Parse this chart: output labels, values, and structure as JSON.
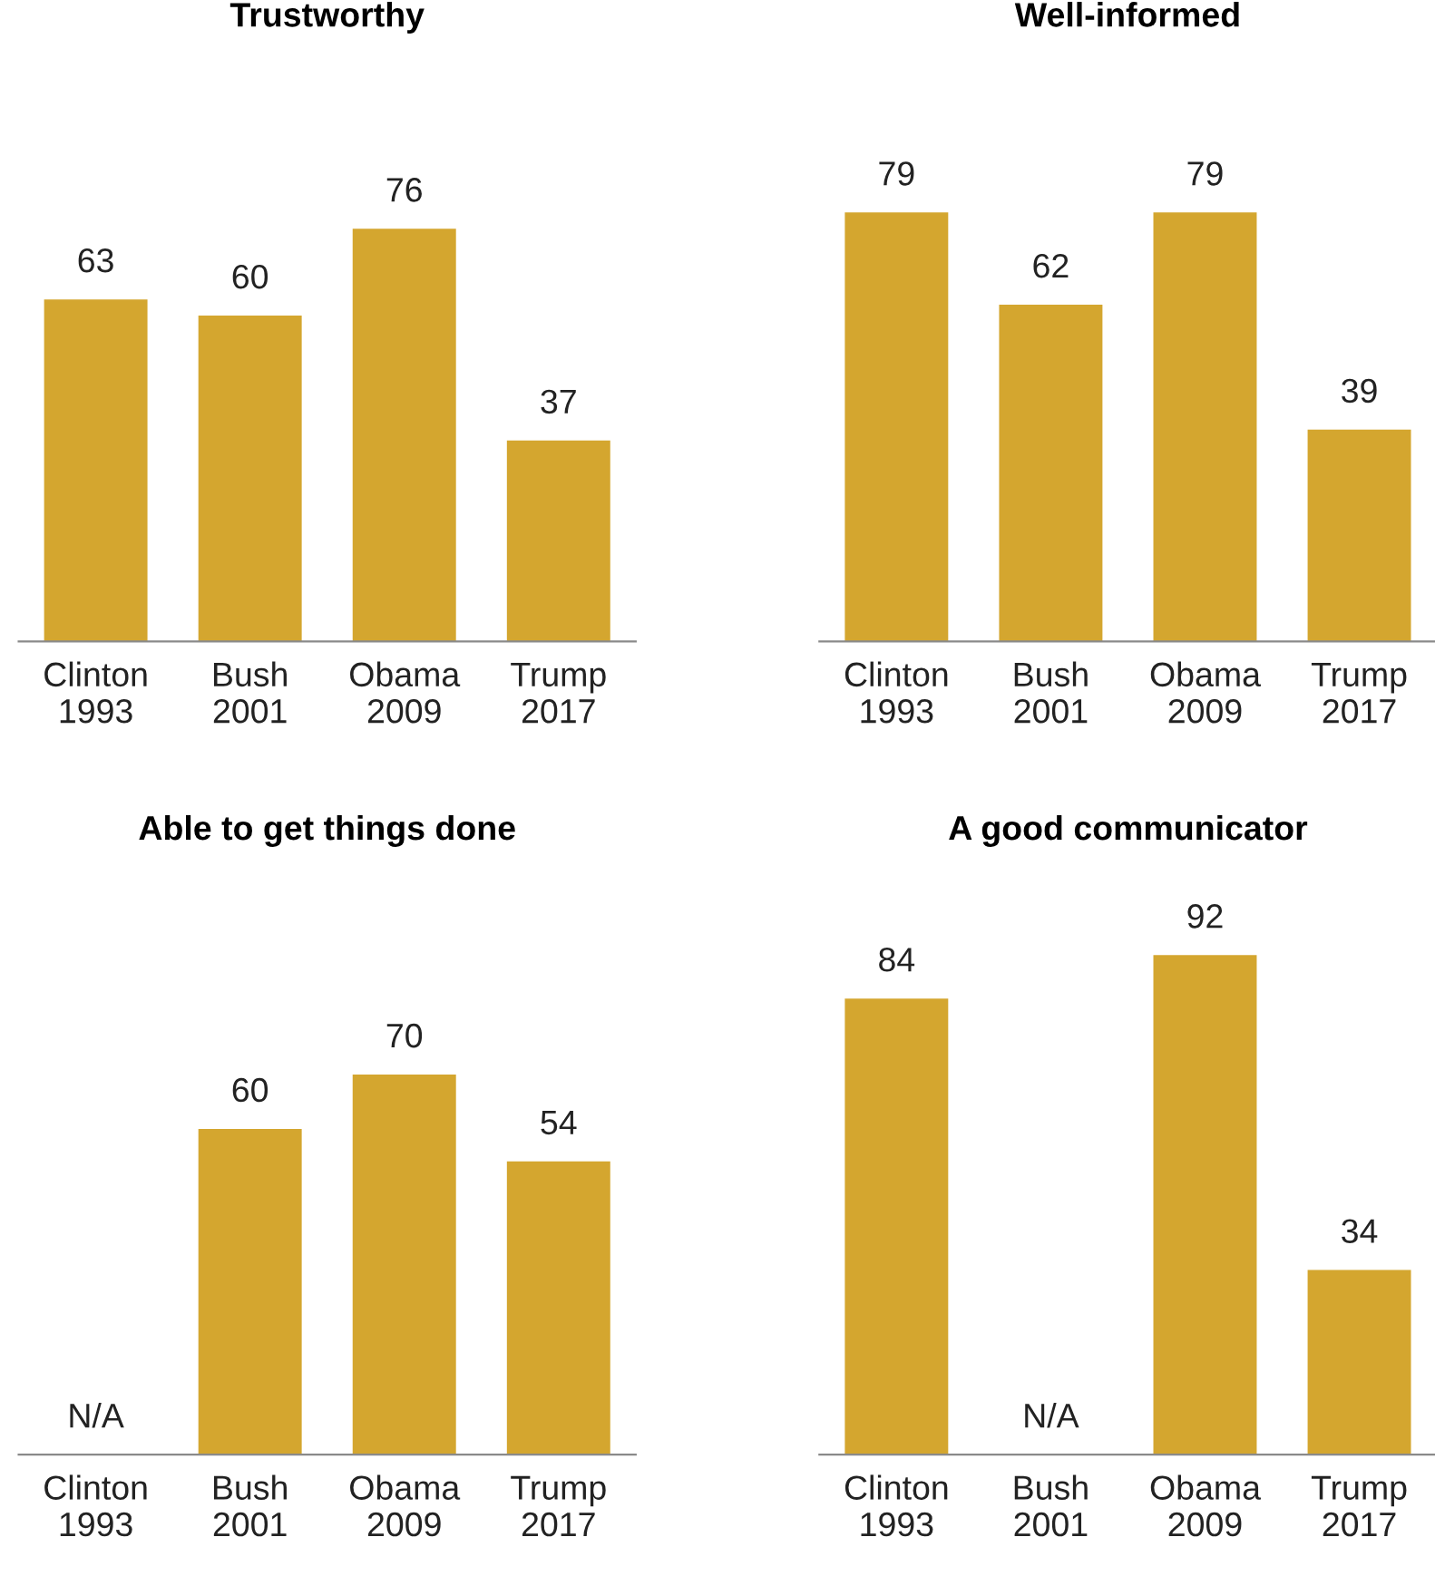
{
  "chart_data": [
    {
      "type": "bar",
      "title": "Trustworthy",
      "categories": [
        "Clinton\n1993",
        "Bush\n2001",
        "Obama\n2009",
        "Trump\n2017"
      ],
      "values": [
        63,
        60,
        76,
        37
      ],
      "color": "#d4a62f",
      "data_labels": true,
      "tick_labels": "x",
      "grid": false,
      "legend": false
    },
    {
      "type": "bar",
      "title": "Well-informed",
      "categories": [
        "Clinton\n1993",
        "Bush\n2001",
        "Obama\n2009",
        "Trump\n2017"
      ],
      "values": [
        79,
        62,
        79,
        39
      ],
      "color": "#d4a62f",
      "data_labels": true,
      "tick_labels": "x",
      "grid": false,
      "legend": false
    },
    {
      "type": "bar",
      "title": "Able to get things done",
      "categories": [
        "Clinton\n1993",
        "Bush\n2001",
        "Obama\n2009",
        "Trump\n2017"
      ],
      "values": [
        null,
        60,
        70,
        54
      ],
      "value_labels": [
        "N/A",
        "60",
        "70",
        "54"
      ],
      "color": "#d4a62f",
      "tick_labels": "x",
      "grid": false,
      "legend": false
    },
    {
      "type": "bar",
      "title": "A good communicator",
      "categories": [
        "Clinton\n1993",
        "Bush\n2001",
        "Obama\n2009",
        "Trump\n2017"
      ],
      "values": [
        84,
        null,
        92,
        34
      ],
      "value_labels": [
        "84",
        "N/A",
        "92",
        "34"
      ],
      "color": "#d4a62f",
      "tick_labels": "x",
      "grid": false,
      "legend": false
    }
  ]
}
